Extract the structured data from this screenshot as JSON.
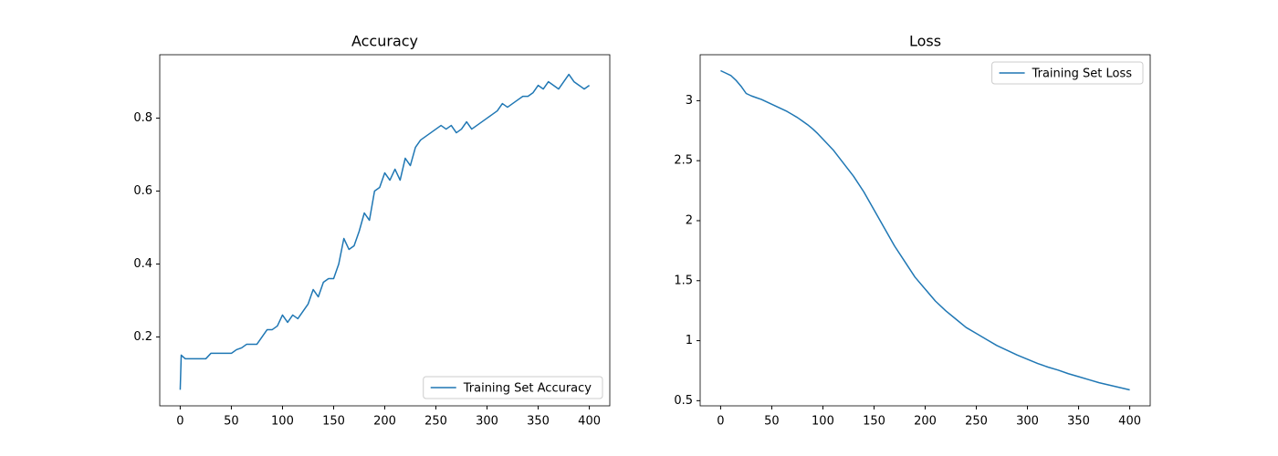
{
  "chart_data": [
    {
      "type": "line",
      "title": "Accuracy",
      "x": [
        0,
        1,
        5,
        10,
        15,
        20,
        25,
        30,
        35,
        40,
        45,
        50,
        55,
        60,
        65,
        70,
        75,
        80,
        85,
        90,
        95,
        100,
        105,
        110,
        115,
        120,
        125,
        130,
        135,
        140,
        145,
        150,
        155,
        160,
        165,
        170,
        175,
        180,
        185,
        190,
        195,
        200,
        205,
        210,
        215,
        220,
        225,
        230,
        235,
        240,
        245,
        250,
        255,
        260,
        265,
        270,
        275,
        280,
        285,
        290,
        295,
        300,
        305,
        310,
        315,
        320,
        325,
        330,
        335,
        340,
        345,
        350,
        355,
        360,
        365,
        370,
        375,
        380,
        385,
        390,
        395,
        400
      ],
      "series": [
        {
          "name": "Training Set Accuracy",
          "color": "#1f77b4",
          "values": [
            0.055,
            0.15,
            0.14,
            0.14,
            0.14,
            0.14,
            0.14,
            0.155,
            0.155,
            0.155,
            0.155,
            0.155,
            0.165,
            0.17,
            0.18,
            0.18,
            0.18,
            0.2,
            0.22,
            0.22,
            0.23,
            0.26,
            0.24,
            0.26,
            0.25,
            0.27,
            0.29,
            0.33,
            0.31,
            0.35,
            0.36,
            0.36,
            0.4,
            0.47,
            0.44,
            0.45,
            0.49,
            0.54,
            0.52,
            0.6,
            0.61,
            0.65,
            0.63,
            0.66,
            0.63,
            0.69,
            0.67,
            0.72,
            0.74,
            0.75,
            0.76,
            0.77,
            0.78,
            0.77,
            0.78,
            0.76,
            0.77,
            0.79,
            0.77,
            0.78,
            0.79,
            0.8,
            0.81,
            0.82,
            0.84,
            0.83,
            0.84,
            0.85,
            0.86,
            0.86,
            0.87,
            0.89,
            0.88,
            0.9,
            0.89,
            0.88,
            0.9,
            0.92,
            0.9,
            0.89,
            0.88,
            0.89
          ]
        }
      ],
      "xlim": [
        -20,
        420
      ],
      "xticks": [
        0,
        50,
        100,
        150,
        200,
        250,
        300,
        350,
        400
      ],
      "ylim": [
        0.011,
        0.974
      ],
      "yticks": [
        0.2,
        0.4,
        0.6,
        0.8
      ],
      "legend": "lower right"
    },
    {
      "type": "line",
      "title": "Loss",
      "x": [
        0,
        5,
        10,
        15,
        20,
        25,
        30,
        35,
        40,
        45,
        50,
        55,
        60,
        65,
        70,
        75,
        80,
        85,
        90,
        95,
        100,
        110,
        120,
        130,
        140,
        150,
        160,
        170,
        180,
        190,
        200,
        210,
        220,
        230,
        240,
        250,
        260,
        270,
        280,
        290,
        300,
        310,
        320,
        330,
        340,
        350,
        360,
        370,
        380,
        390,
        400
      ],
      "series": [
        {
          "name": "Training Set Loss",
          "color": "#1f77b4",
          "values": [
            3.25,
            3.23,
            3.21,
            3.17,
            3.12,
            3.06,
            3.04,
            3.025,
            3.01,
            2.99,
            2.97,
            2.95,
            2.93,
            2.91,
            2.885,
            2.86,
            2.83,
            2.8,
            2.765,
            2.725,
            2.68,
            2.59,
            2.48,
            2.37,
            2.24,
            2.09,
            1.94,
            1.79,
            1.66,
            1.53,
            1.43,
            1.33,
            1.25,
            1.18,
            1.11,
            1.06,
            1.01,
            0.96,
            0.92,
            0.88,
            0.845,
            0.81,
            0.78,
            0.755,
            0.725,
            0.7,
            0.675,
            0.65,
            0.63,
            0.61,
            0.59
          ]
        }
      ],
      "xlim": [
        -20,
        420
      ],
      "xticks": [
        0,
        50,
        100,
        150,
        200,
        250,
        300,
        350,
        400
      ],
      "ylim": [
        0.457,
        3.383
      ],
      "yticks": [
        0.5,
        1.0,
        1.5,
        2.0,
        2.5,
        3.0
      ],
      "legend": "upper right"
    }
  ]
}
